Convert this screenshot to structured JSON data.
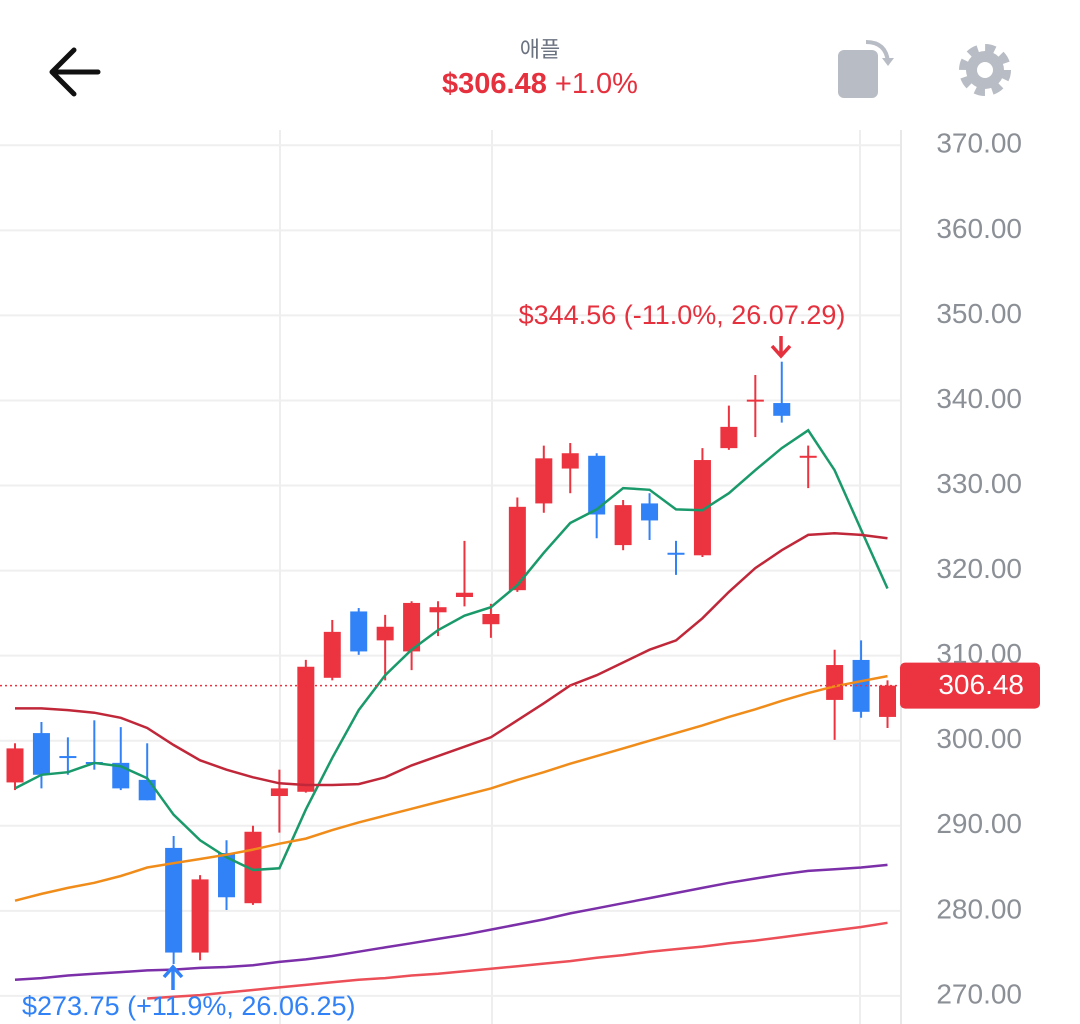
{
  "header": {
    "name": "애플",
    "price": "$306.48",
    "change": "+1.0%"
  },
  "chart_data": {
    "type": "candlestick",
    "up_color": "#ec3340",
    "down_color": "#3182f6",
    "open": [
      295.1,
      300.9,
      298.2,
      297.5,
      297.4,
      295.4,
      287.4,
      275.1,
      286.8,
      280.9,
      293.5,
      294.0,
      307.4,
      315.2,
      311.8,
      310.5,
      315.1,
      316.9,
      313.7,
      317.7,
      327.9,
      332.0,
      333.5,
      323.0,
      327.9,
      322.1,
      321.8,
      334.4,
      339.9,
      339.7,
      333.3,
      304.8,
      309.5,
      302.8
    ],
    "high": [
      299.7,
      302.2,
      300.4,
      302.4,
      301.6,
      299.7,
      288.8,
      284.2,
      288.3,
      290.0,
      296.6,
      309.5,
      314.2,
      315.6,
      314.8,
      316.4,
      316.4,
      323.5,
      316.1,
      328.6,
      334.7,
      335.0,
      333.8,
      328.3,
      329.1,
      323.5,
      334.4,
      339.4,
      343.0,
      344.56,
      334.7,
      310.7,
      311.8,
      307.1
    ],
    "low": [
      294.2,
      294.4,
      296.0,
      296.6,
      294.2,
      293.0,
      273.75,
      274.2,
      280.1,
      280.7,
      289.2,
      293.9,
      307.1,
      310.1,
      307.1,
      308.3,
      312.3,
      315.8,
      312.1,
      317.5,
      326.8,
      329.1,
      323.8,
      322.4,
      323.6,
      319.5,
      321.6,
      334.2,
      335.7,
      337.4,
      329.7,
      300.1,
      302.7,
      301.5
    ],
    "close": [
      299.1,
      296.0,
      298.0,
      297.3,
      294.4,
      293.0,
      275.1,
      283.7,
      281.6,
      289.3,
      294.4,
      308.7,
      312.8,
      310.5,
      313.4,
      316.2,
      315.7,
      317.4,
      314.9,
      327.5,
      333.2,
      333.8,
      326.6,
      327.7,
      325.9,
      322.0,
      333.0,
      336.9,
      340.1,
      338.2,
      333.5,
      308.9,
      303.4,
      306.48
    ],
    "series": [
      {
        "color": "#1a9a6b",
        "values": [
          294.4,
          296.0,
          296.3,
          297.4,
          297.0,
          295.6,
          291.3,
          288.3,
          286.3,
          284.8,
          285.0,
          291.9,
          298.0,
          303.6,
          307.7,
          310.7,
          313.0,
          314.7,
          315.7,
          318.3,
          322.1,
          325.6,
          327.2,
          329.7,
          329.5,
          327.2,
          327.1,
          329.1,
          331.8,
          334.4,
          336.5,
          331.8,
          324.8,
          317.9
        ]
      },
      {
        "color": "#c0283a",
        "values": [
          303.8,
          303.8,
          303.6,
          303.3,
          302.7,
          301.5,
          299.5,
          297.7,
          296.6,
          295.7,
          295.0,
          294.8,
          294.8,
          294.9,
          295.7,
          297.1,
          298.2,
          299.3,
          300.4,
          302.4,
          304.4,
          306.5,
          307.7,
          309.2,
          310.7,
          311.8,
          314.4,
          317.5,
          320.3,
          322.4,
          324.2,
          324.4,
          324.2,
          323.8
        ]
      },
      {
        "color": "#f08c1a",
        "values": [
          281.2,
          282.0,
          282.7,
          283.3,
          284.1,
          285.1,
          285.6,
          286.1,
          286.6,
          287.2,
          287.9,
          288.5,
          289.5,
          290.4,
          291.2,
          292.0,
          292.8,
          293.6,
          294.4,
          295.4,
          296.3,
          297.3,
          298.2,
          299.1,
          300.0,
          300.9,
          301.8,
          302.8,
          303.7,
          304.7,
          305.6,
          306.4,
          307.0,
          307.6
        ]
      },
      {
        "color": "#7b2fa8",
        "values": [
          271.9,
          272.1,
          272.4,
          272.6,
          272.8,
          273.0,
          273.1,
          273.3,
          273.4,
          273.6,
          274.0,
          274.3,
          274.7,
          275.2,
          275.7,
          276.2,
          276.7,
          277.2,
          277.8,
          278.4,
          279.0,
          279.7,
          280.3,
          280.9,
          281.5,
          282.1,
          282.7,
          283.3,
          283.8,
          284.3,
          284.7,
          284.9,
          285.1,
          285.4
        ]
      },
      {
        "color": "#ec4f57",
        "values": [
          null,
          null,
          null,
          null,
          null,
          269.7,
          269.9,
          270.1,
          270.4,
          270.7,
          271.0,
          271.3,
          271.6,
          271.9,
          272.1,
          272.4,
          272.6,
          272.9,
          273.2,
          273.5,
          273.8,
          274.1,
          274.5,
          274.8,
          275.2,
          275.5,
          275.8,
          276.2,
          276.5,
          276.9,
          277.3,
          277.7,
          278.1,
          278.6
        ]
      }
    ],
    "price_line": 306.48,
    "annotations": [
      "$344.56 (-11.0%, 26.07.29)",
      "$273.75 (+11.9%, 26.06.25)"
    ],
    "ylim": [
      266.7,
      371.8
    ],
    "yticks": [
      {
        "value": 270,
        "label": "270.00"
      },
      {
        "value": 280,
        "label": "280.00"
      },
      {
        "value": 290,
        "label": "290.00"
      },
      {
        "value": 300,
        "label": "300.00"
      },
      {
        "value": 310,
        "label": "310.00"
      },
      {
        "value": 320,
        "label": "320.00"
      },
      {
        "value": 330,
        "label": "330.00"
      },
      {
        "value": 340,
        "label": "340.00"
      },
      {
        "value": 350,
        "label": "350.00"
      },
      {
        "value": 360,
        "label": "360.00"
      },
      {
        "value": 370,
        "label": "370.00"
      }
    ],
    "grid": true
  }
}
